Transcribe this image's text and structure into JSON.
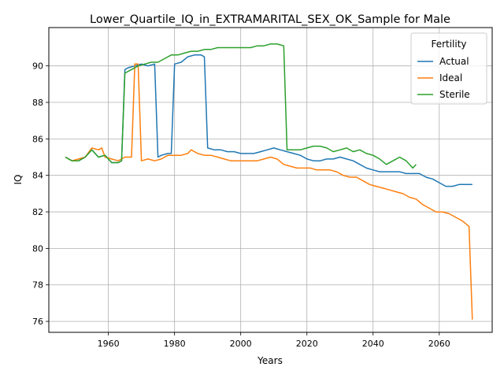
{
  "chart_data": {
    "type": "line",
    "title": "Lower_Quartile_IQ_in_EXTRAMARITAL_SEX_OK_Sample for Male",
    "xlabel": "Years",
    "ylabel": "IQ",
    "xlim": [
      1942,
      2076
    ],
    "ylim": [
      75.4,
      92.1
    ],
    "xticks": [
      1960,
      1980,
      2000,
      2020,
      2040,
      2060
    ],
    "yticks": [
      76,
      78,
      80,
      82,
      84,
      86,
      88,
      90
    ],
    "grid": true,
    "legend": {
      "title": "Fertility",
      "placement": "top-right"
    },
    "series": [
      {
        "name": "Actual",
        "color": "#1f77b4",
        "x": [
          1947,
          1949,
          1951,
          1953,
          1955,
          1957,
          1959,
          1961,
          1963,
          1964,
          1965,
          1966,
          1968,
          1970,
          1972,
          1974,
          1975,
          1976,
          1978,
          1979,
          1980,
          1982,
          1984,
          1986,
          1988,
          1989,
          1990,
          1992,
          1994,
          1996,
          1998,
          2000,
          2002,
          2004,
          2006,
          2008,
          2010,
          2012,
          2014,
          2016,
          2018,
          2020,
          2022,
          2024,
          2026,
          2028,
          2030,
          2032,
          2034,
          2036,
          2038,
          2040,
          2042,
          2044,
          2046,
          2048,
          2050,
          2052,
          2054,
          2056,
          2058,
          2060,
          2062,
          2064,
          2066,
          2068,
          2070
        ],
        "y": [
          85.0,
          84.8,
          84.8,
          85.0,
          85.4,
          85.0,
          85.1,
          84.7,
          84.7,
          84.8,
          89.8,
          89.9,
          90.0,
          90.1,
          90.0,
          90.1,
          85.0,
          85.1,
          85.2,
          85.2,
          90.1,
          90.2,
          90.5,
          90.6,
          90.6,
          90.5,
          85.5,
          85.4,
          85.4,
          85.3,
          85.3,
          85.2,
          85.2,
          85.2,
          85.3,
          85.4,
          85.5,
          85.4,
          85.3,
          85.2,
          85.1,
          84.9,
          84.8,
          84.8,
          84.9,
          84.9,
          85.0,
          84.9,
          84.8,
          84.6,
          84.4,
          84.3,
          84.2,
          84.2,
          84.2,
          84.2,
          84.1,
          84.1,
          84.1,
          83.9,
          83.8,
          83.6,
          83.4,
          83.4,
          83.5,
          83.5,
          83.5
        ]
      },
      {
        "name": "Ideal",
        "color": "#ff7f0e",
        "x": [
          1947,
          1949,
          1951,
          1953,
          1955,
          1957,
          1958,
          1959,
          1961,
          1963,
          1964,
          1965,
          1967,
          1968,
          1969,
          1970,
          1972,
          1974,
          1976,
          1978,
          1980,
          1982,
          1984,
          1985,
          1987,
          1989,
          1991,
          1993,
          1995,
          1997,
          1999,
          2001,
          2003,
          2005,
          2007,
          2009,
          2011,
          2013,
          2015,
          2017,
          2019,
          2021,
          2023,
          2025,
          2027,
          2029,
          2031,
          2033,
          2035,
          2037,
          2039,
          2041,
          2043,
          2045,
          2047,
          2049,
          2051,
          2053,
          2055,
          2057,
          2059,
          2061,
          2063,
          2065,
          2067,
          2069,
          2070
        ],
        "y": [
          85.0,
          84.8,
          84.9,
          85.0,
          85.5,
          85.4,
          85.5,
          85.0,
          84.9,
          84.8,
          84.9,
          85.0,
          85.0,
          90.1,
          90.1,
          84.8,
          84.9,
          84.8,
          84.9,
          85.1,
          85.1,
          85.1,
          85.2,
          85.4,
          85.2,
          85.1,
          85.1,
          85.0,
          84.9,
          84.8,
          84.8,
          84.8,
          84.8,
          84.8,
          84.9,
          85.0,
          84.9,
          84.6,
          84.5,
          84.4,
          84.4,
          84.4,
          84.3,
          84.3,
          84.3,
          84.2,
          84.0,
          83.9,
          83.9,
          83.7,
          83.5,
          83.4,
          83.3,
          83.2,
          83.1,
          83.0,
          82.8,
          82.7,
          82.4,
          82.2,
          82.0,
          82.0,
          81.9,
          81.7,
          81.5,
          81.2,
          76.1
        ]
      },
      {
        "name": "Sterile",
        "color": "#2ca02c",
        "x": [
          1947,
          1949,
          1951,
          1953,
          1955,
          1957,
          1959,
          1961,
          1963,
          1964,
          1965,
          1967,
          1969,
          1971,
          1973,
          1975,
          1977,
          1979,
          1981,
          1983,
          1985,
          1987,
          1989,
          1991,
          1993,
          1995,
          1997,
          1999,
          2001,
          2003,
          2005,
          2007,
          2009,
          2011,
          2013,
          2014,
          2016,
          2018,
          2020,
          2022,
          2024,
          2026,
          2028,
          2030,
          2032,
          2034,
          2036,
          2038,
          2040,
          2042,
          2044,
          2046,
          2048,
          2050,
          2052,
          2053
        ],
        "y": [
          85.0,
          84.8,
          84.8,
          85.0,
          85.4,
          85.0,
          85.1,
          84.7,
          84.7,
          84.8,
          89.6,
          89.8,
          90.0,
          90.1,
          90.2,
          90.2,
          90.4,
          90.6,
          90.6,
          90.7,
          90.8,
          90.8,
          90.9,
          90.9,
          91.0,
          91.0,
          91.0,
          91.0,
          91.0,
          91.0,
          91.1,
          91.1,
          91.2,
          91.2,
          91.1,
          85.4,
          85.4,
          85.4,
          85.5,
          85.6,
          85.6,
          85.5,
          85.3,
          85.4,
          85.5,
          85.3,
          85.4,
          85.2,
          85.1,
          84.9,
          84.6,
          84.8,
          85.0,
          84.8,
          84.4,
          84.6
        ]
      }
    ]
  }
}
